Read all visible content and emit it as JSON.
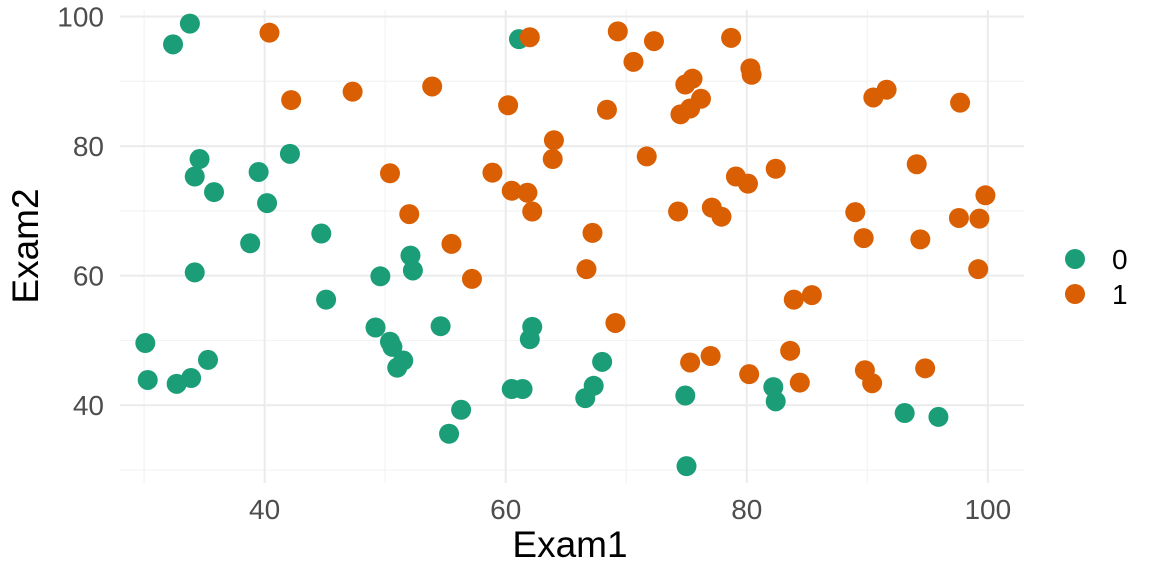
{
  "chart_data": {
    "type": "scatter",
    "title": "",
    "xlabel": "Exam1",
    "ylabel": "Exam2",
    "xlim": [
      28,
      103
    ],
    "ylim": [
      28,
      101
    ],
    "xticks": [
      40,
      60,
      80,
      100
    ],
    "yticks": [
      40,
      60,
      80,
      100
    ],
    "grid": true,
    "legend_position": "right",
    "series": [
      {
        "name": "0",
        "color": "#1b9e77",
        "points": [
          [
            34.6,
            78.0
          ],
          [
            30.3,
            43.9
          ],
          [
            35.8,
            72.9
          ],
          [
            45.1,
            56.3
          ],
          [
            39.5,
            76.0
          ],
          [
            61.1,
            96.5
          ],
          [
            42.1,
            78.8
          ],
          [
            52.1,
            63.1
          ],
          [
            51.0,
            45.8
          ],
          [
            34.2,
            60.5
          ],
          [
            56.3,
            39.3
          ],
          [
            35.3,
            47.0
          ],
          [
            32.7,
            43.3
          ],
          [
            33.9,
            44.2
          ],
          [
            40.2,
            71.2
          ],
          [
            38.8,
            65.0
          ],
          [
            49.2,
            52.0
          ],
          [
            50.4,
            49.8
          ],
          [
            52.3,
            60.8
          ],
          [
            30.1,
            49.6
          ],
          [
            61.4,
            42.5
          ],
          [
            32.4,
            95.7
          ],
          [
            33.8,
            98.9
          ],
          [
            44.7,
            66.5
          ],
          [
            49.6,
            59.9
          ],
          [
            55.3,
            35.6
          ],
          [
            54.6,
            52.2
          ],
          [
            62.2,
            52.1
          ],
          [
            67.3,
            43.0
          ],
          [
            74.9,
            41.5
          ],
          [
            75.0,
            30.6
          ],
          [
            93.1,
            38.8
          ],
          [
            95.9,
            38.2
          ],
          [
            50.6,
            49.0
          ],
          [
            51.5,
            46.9
          ],
          [
            68.0,
            46.7
          ],
          [
            82.4,
            40.6
          ],
          [
            82.2,
            42.8
          ],
          [
            66.6,
            41.1
          ],
          [
            62.0,
            50.2
          ],
          [
            34.2,
            75.3
          ],
          [
            60.5,
            42.5
          ]
        ]
      },
      {
        "name": "1",
        "color": "#d95f02",
        "points": [
          [
            40.4,
            97.5
          ],
          [
            42.2,
            87.1
          ],
          [
            47.3,
            88.4
          ],
          [
            53.9,
            89.2
          ],
          [
            60.2,
            86.3
          ],
          [
            62.0,
            96.8
          ],
          [
            69.3,
            97.7
          ],
          [
            72.3,
            96.2
          ],
          [
            78.7,
            96.7
          ],
          [
            80.3,
            92.0
          ],
          [
            80.4,
            91.0
          ],
          [
            70.6,
            93.0
          ],
          [
            75.5,
            90.4
          ],
          [
            74.9,
            89.5
          ],
          [
            75.3,
            85.8
          ],
          [
            76.2,
            87.3
          ],
          [
            74.5,
            84.9
          ],
          [
            68.4,
            85.6
          ],
          [
            64.0,
            80.9
          ],
          [
            63.9,
            78.0
          ],
          [
            71.7,
            78.4
          ],
          [
            79.1,
            75.3
          ],
          [
            80.1,
            74.2
          ],
          [
            82.4,
            76.5
          ],
          [
            58.9,
            75.9
          ],
          [
            60.5,
            73.1
          ],
          [
            61.8,
            72.8
          ],
          [
            62.2,
            69.9
          ],
          [
            50.4,
            75.8
          ],
          [
            52.0,
            69.5
          ],
          [
            55.5,
            64.9
          ],
          [
            57.2,
            59.5
          ],
          [
            67.2,
            66.6
          ],
          [
            66.7,
            61.0
          ],
          [
            69.1,
            52.7
          ],
          [
            74.3,
            69.9
          ],
          [
            77.1,
            70.5
          ],
          [
            77.9,
            69.1
          ],
          [
            75.3,
            46.6
          ],
          [
            77.0,
            47.6
          ],
          [
            80.2,
            44.8
          ],
          [
            83.6,
            48.4
          ],
          [
            83.9,
            56.3
          ],
          [
            85.4,
            57.0
          ],
          [
            84.4,
            43.5
          ],
          [
            89.0,
            69.8
          ],
          [
            89.7,
            65.8
          ],
          [
            90.5,
            87.5
          ],
          [
            91.6,
            88.7
          ],
          [
            94.1,
            77.2
          ],
          [
            94.4,
            65.6
          ],
          [
            97.6,
            68.9
          ],
          [
            99.3,
            68.8
          ],
          [
            99.8,
            72.4
          ],
          [
            97.7,
            86.7
          ],
          [
            99.2,
            61.0
          ],
          [
            89.8,
            45.4
          ],
          [
            90.4,
            43.4
          ],
          [
            94.8,
            45.7
          ]
        ]
      }
    ]
  }
}
